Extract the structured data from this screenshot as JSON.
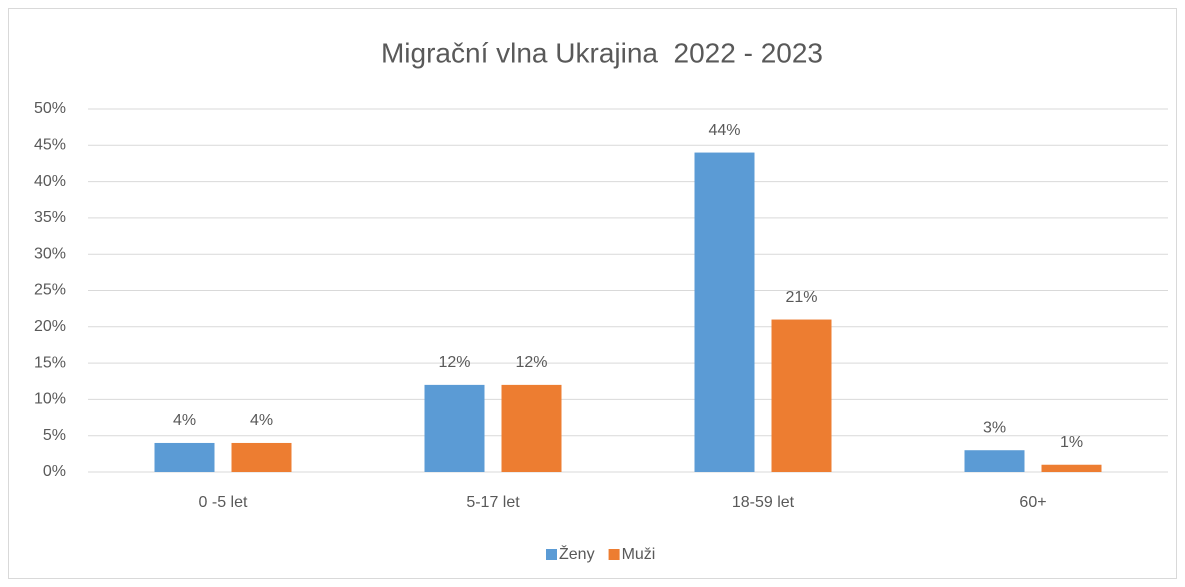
{
  "chart_data": {
    "type": "bar",
    "title": "Migrační vlna Ukrajina  2022 - 2023",
    "categories": [
      "0 -5 let",
      "5-17 let",
      "18-59 let",
      "60+"
    ],
    "series": [
      {
        "name": "Ženy",
        "color": "#5b9bd5",
        "values": [
          4,
          12,
          44,
          3
        ],
        "value_labels": [
          "4%",
          "12%",
          "44%",
          "3%"
        ]
      },
      {
        "name": "Muži",
        "color": "#ed7d31",
        "values": [
          4,
          12,
          21,
          1
        ],
        "value_labels": [
          "4%",
          "12%",
          "21%",
          "1%"
        ]
      }
    ],
    "ylim": [
      0,
      50
    ],
    "yticks": [
      {
        "value": 0,
        "label": "0%"
      },
      {
        "value": 5,
        "label": "5%"
      },
      {
        "value": 10,
        "label": "10%"
      },
      {
        "value": 15,
        "label": "15%"
      },
      {
        "value": 20,
        "label": "20%"
      },
      {
        "value": 25,
        "label": "25%"
      },
      {
        "value": 30,
        "label": "30%"
      },
      {
        "value": 35,
        "label": "35%"
      },
      {
        "value": 40,
        "label": "40%"
      },
      {
        "value": 45,
        "label": "45%"
      },
      {
        "value": 50,
        "label": "50%"
      }
    ],
    "grid": true,
    "legend": "bottom"
  }
}
